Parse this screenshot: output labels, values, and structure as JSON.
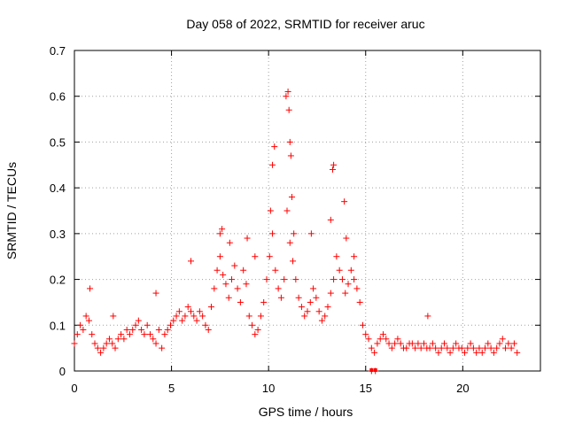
{
  "chart_data": {
    "type": "scatter",
    "title": "Day 058 of 2022, SRMTID for receiver aruc",
    "xlabel": "GPS time / hours",
    "ylabel": "SRMTID / TECUs",
    "xlim": [
      0,
      24
    ],
    "ylim": [
      0,
      0.7
    ],
    "xticks": [
      0,
      5,
      10,
      15,
      20
    ],
    "yticks": [
      0,
      0.1,
      0.2,
      0.3,
      0.4,
      0.5,
      0.6,
      0.7
    ],
    "xtick_labels": [
      "0",
      "5",
      "10",
      "15",
      "20"
    ],
    "ytick_labels": [
      "0",
      "0.1",
      "0.2",
      "0.3",
      "0.4",
      "0.5",
      "0.6",
      "0.7"
    ],
    "grid": true,
    "marker": "+",
    "color": "#ff0000",
    "series": [
      {
        "name": "SRMTID",
        "x": [
          0.0,
          0.15,
          0.3,
          0.45,
          0.6,
          0.75,
          0.9,
          1.05,
          1.2,
          1.35,
          1.5,
          1.65,
          1.8,
          1.95,
          2.1,
          2.25,
          2.4,
          2.55,
          2.7,
          2.85,
          3.0,
          3.15,
          3.3,
          3.45,
          3.6,
          3.75,
          3.9,
          4.05,
          4.2,
          4.35,
          4.5,
          4.65,
          4.8,
          4.95,
          5.1,
          5.25,
          5.4,
          5.55,
          5.7,
          5.85,
          6.0,
          6.15,
          6.3,
          6.45,
          6.6,
          6.75,
          6.9,
          7.05,
          7.2,
          7.35,
          7.5,
          7.65,
          7.8,
          7.95,
          8.1,
          8.25,
          8.4,
          8.55,
          8.7,
          8.85,
          9.0,
          9.15,
          9.3,
          9.45,
          9.6,
          9.75,
          9.9,
          10.05,
          10.2,
          10.35,
          10.5,
          10.65,
          10.8,
          10.95,
          11.1,
          11.25,
          11.4,
          11.55,
          11.7,
          11.85,
          12.0,
          12.15,
          12.3,
          12.45,
          12.6,
          12.75,
          12.9,
          13.05,
          13.2,
          13.35,
          13.5,
          13.65,
          13.8,
          13.95,
          14.1,
          14.25,
          14.4,
          14.55,
          14.7,
          14.85,
          15.0,
          15.15,
          15.3,
          15.45,
          15.6,
          15.75,
          15.9,
          16.05,
          16.2,
          16.35,
          16.5,
          16.65,
          16.8,
          16.95,
          17.1,
          17.25,
          17.4,
          17.55,
          17.7,
          17.85,
          18.0,
          18.15,
          18.3,
          18.45,
          18.6,
          18.75,
          18.9,
          19.05,
          19.2,
          19.35,
          19.5,
          19.65,
          19.8,
          19.95,
          20.1,
          20.25,
          20.4,
          20.55,
          20.7,
          20.85,
          21.0,
          21.15,
          21.3,
          21.45,
          21.6,
          21.75,
          21.9,
          22.05,
          22.2,
          22.35,
          22.5,
          22.65,
          22.8,
          0.8,
          2.0,
          4.2,
          7.5,
          7.6,
          8.9,
          10.1,
          10.2,
          10.3,
          10.9,
          11.0,
          11.05,
          11.1,
          11.15,
          11.2,
          11.3,
          13.2,
          13.3,
          13.35,
          13.9,
          14.0,
          14.4,
          15.3,
          15.5,
          18.2,
          12.2,
          9.3,
          8.0,
          6.0
        ],
        "y": [
          0.06,
          0.08,
          0.1,
          0.09,
          0.12,
          0.11,
          0.08,
          0.06,
          0.05,
          0.04,
          0.05,
          0.06,
          0.07,
          0.06,
          0.05,
          0.07,
          0.08,
          0.07,
          0.09,
          0.08,
          0.09,
          0.1,
          0.11,
          0.09,
          0.08,
          0.1,
          0.08,
          0.07,
          0.06,
          0.09,
          0.05,
          0.08,
          0.09,
          0.1,
          0.11,
          0.12,
          0.13,
          0.11,
          0.12,
          0.14,
          0.13,
          0.12,
          0.11,
          0.13,
          0.12,
          0.1,
          0.09,
          0.14,
          0.18,
          0.22,
          0.25,
          0.21,
          0.19,
          0.16,
          0.2,
          0.23,
          0.18,
          0.15,
          0.22,
          0.19,
          0.12,
          0.1,
          0.08,
          0.09,
          0.12,
          0.15,
          0.2,
          0.25,
          0.3,
          0.22,
          0.18,
          0.16,
          0.2,
          0.35,
          0.28,
          0.24,
          0.2,
          0.16,
          0.14,
          0.12,
          0.13,
          0.15,
          0.18,
          0.16,
          0.13,
          0.11,
          0.12,
          0.14,
          0.17,
          0.2,
          0.25,
          0.22,
          0.2,
          0.17,
          0.19,
          0.22,
          0.2,
          0.18,
          0.15,
          0.1,
          0.08,
          0.07,
          0.05,
          0.04,
          0.06,
          0.07,
          0.08,
          0.07,
          0.06,
          0.05,
          0.06,
          0.07,
          0.06,
          0.05,
          0.05,
          0.06,
          0.06,
          0.05,
          0.06,
          0.05,
          0.06,
          0.05,
          0.05,
          0.06,
          0.05,
          0.04,
          0.05,
          0.06,
          0.05,
          0.04,
          0.05,
          0.06,
          0.05,
          0.05,
          0.04,
          0.05,
          0.06,
          0.05,
          0.04,
          0.05,
          0.04,
          0.05,
          0.06,
          0.05,
          0.04,
          0.05,
          0.06,
          0.07,
          0.05,
          0.06,
          0.05,
          0.06,
          0.04,
          0.18,
          0.12,
          0.17,
          0.3,
          0.31,
          0.29,
          0.35,
          0.45,
          0.49,
          0.6,
          0.61,
          0.57,
          0.5,
          0.47,
          0.38,
          0.3,
          0.33,
          0.44,
          0.45,
          0.37,
          0.29,
          0.25,
          0.0,
          0.0,
          0.12,
          0.3,
          0.25,
          0.28,
          0.24
        ]
      }
    ],
    "zero_markers_x": [
      15.3,
      15.5
    ]
  }
}
